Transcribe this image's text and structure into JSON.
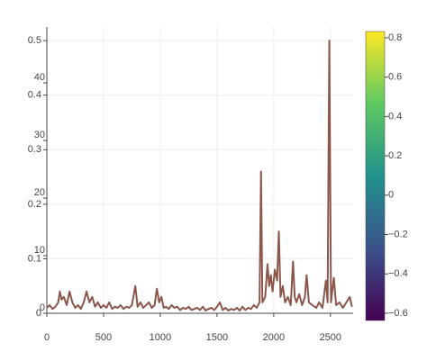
{
  "chart_data": {
    "type": "line",
    "x": [
      0,
      25,
      50,
      75,
      100,
      115,
      130,
      150,
      175,
      200,
      225,
      250,
      275,
      300,
      325,
      350,
      375,
      400,
      425,
      450,
      475,
      500,
      525,
      550,
      575,
      600,
      625,
      650,
      675,
      700,
      725,
      750,
      780,
      800,
      825,
      850,
      875,
      900,
      925,
      950,
      970,
      990,
      1010,
      1030,
      1050,
      1075,
      1100,
      1125,
      1150,
      1175,
      1200,
      1225,
      1250,
      1275,
      1300,
      1325,
      1350,
      1375,
      1400,
      1425,
      1450,
      1475,
      1500,
      1525,
      1550,
      1575,
      1600,
      1625,
      1650,
      1675,
      1700,
      1725,
      1750,
      1775,
      1800,
      1825,
      1850,
      1875,
      1888,
      1900,
      1925,
      1945,
      1960,
      1975,
      1990,
      2010,
      2030,
      2045,
      2060,
      2080,
      2100,
      2125,
      2150,
      2170,
      2185,
      2200,
      2225,
      2250,
      2275,
      2290,
      2310,
      2340,
      2375,
      2400,
      2430,
      2460,
      2475,
      2490,
      2505,
      2530,
      2550,
      2580,
      2610,
      2640,
      2670,
      2690
    ],
    "series": [
      {
        "color": "#8c564b",
        "values": [
          0.01,
          0.015,
          0.008,
          0.012,
          0.02,
          0.04,
          0.025,
          0.03,
          0.015,
          0.04,
          0.02,
          0.01,
          0.015,
          0.008,
          0.02,
          0.04,
          0.02,
          0.03,
          0.012,
          0.02,
          0.01,
          0.015,
          0.01,
          0.02,
          0.008,
          0.012,
          0.01,
          0.015,
          0.008,
          0.012,
          0.01,
          0.015,
          0.05,
          0.012,
          0.02,
          0.01,
          0.015,
          0.02,
          0.01,
          0.015,
          0.045,
          0.02,
          0.03,
          0.01,
          0.012,
          0.008,
          0.015,
          0.01,
          0.012,
          0.006,
          0.01,
          0.008,
          0.012,
          0.006,
          0.008,
          0.01,
          0.006,
          0.012,
          0.005,
          0.008,
          0.01,
          0.006,
          0.012,
          0.02,
          0.006,
          0.01,
          0.005,
          0.008,
          0.006,
          0.01,
          0.005,
          0.012,
          0.006,
          0.01,
          0.008,
          0.015,
          0.01,
          0.02,
          0.26,
          0.02,
          0.03,
          0.09,
          0.05,
          0.07,
          0.04,
          0.08,
          0.06,
          0.15,
          0.03,
          0.05,
          0.02,
          0.03,
          0.015,
          0.095,
          0.03,
          0.02,
          0.035,
          0.015,
          0.03,
          0.07,
          0.02,
          0.015,
          0.01,
          0.02,
          0.01,
          0.06,
          0.02,
          0.5,
          0.02,
          0.065,
          0.015,
          0.02,
          0.01,
          0.02,
          0.03,
          0.012
        ]
      }
    ],
    "xlim": [
      0,
      2700
    ],
    "xticks": [
      0,
      500,
      1000,
      1500,
      2000,
      2500
    ],
    "ylim": [
      0,
      0.525
    ],
    "yticks": [
      0,
      0.1,
      0.2,
      0.3,
      0.4,
      0.5
    ],
    "y2lim": [
      0,
      49.7
    ],
    "y2ticks": [
      0,
      10,
      20,
      30,
      40
    ],
    "grid": true,
    "colorbar": {
      "lim": [
        -0.637,
        0.832
      ],
      "ticks": [
        {
          "value": -0.6,
          "label": "−0.6"
        },
        {
          "value": -0.4,
          "label": "−0.4"
        },
        {
          "value": -0.2,
          "label": "−0.2"
        },
        0,
        0.2,
        0.4,
        0.6,
        0.8
      ]
    }
  }
}
